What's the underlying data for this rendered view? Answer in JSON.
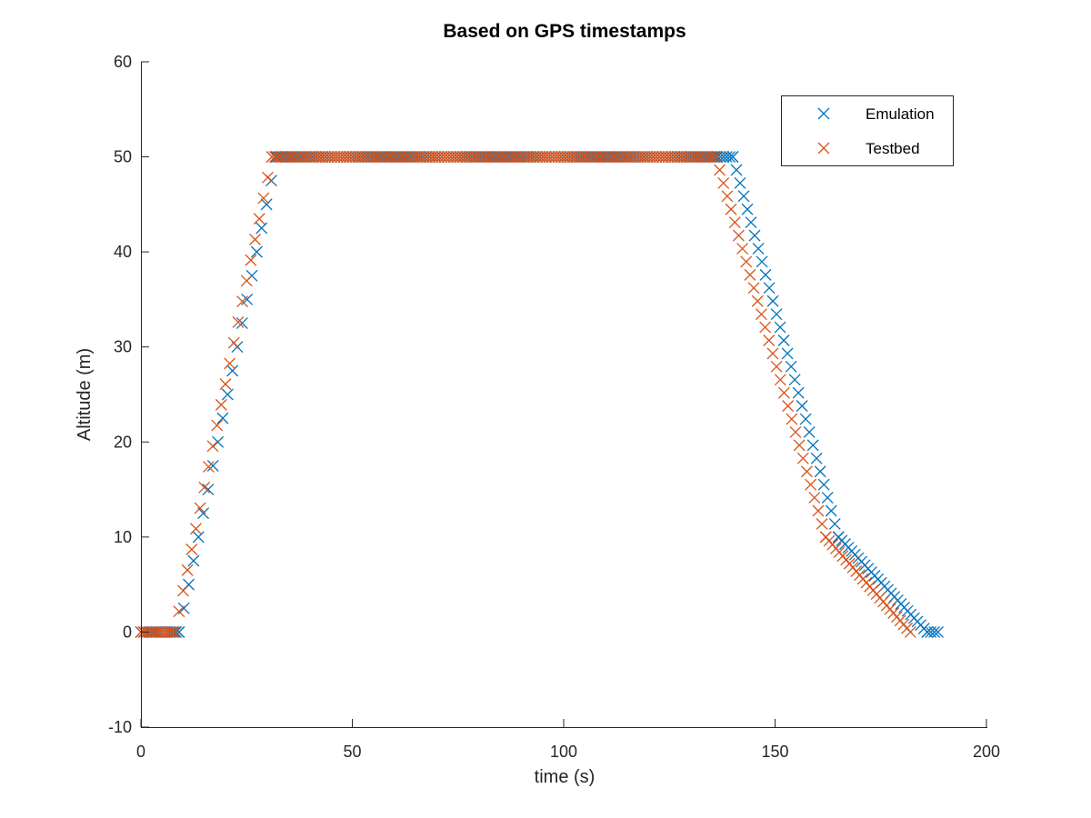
{
  "chart_data": {
    "type": "scatter",
    "title": "Based on GPS timestamps",
    "xlabel": "time (s)",
    "ylabel": "Altitude (m)",
    "xlim": [
      0,
      200
    ],
    "ylim": [
      -10,
      60
    ],
    "xticks": [
      0,
      50,
      100,
      150,
      200
    ],
    "yticks": [
      -10,
      0,
      10,
      20,
      30,
      40,
      50,
      60
    ],
    "xtick_labels": [
      "0",
      "50",
      "100",
      "150",
      "200"
    ],
    "ytick_labels": [
      "-10",
      "0",
      "10",
      "20",
      "30",
      "40",
      "50",
      "60"
    ],
    "grid": false,
    "marker": "x",
    "legend": {
      "placement": "top-right"
    },
    "series": [
      {
        "name": "Emulation",
        "color": "#0072BD",
        "segments": [
          {
            "x_start": 0,
            "x_end": 9,
            "y_start": 0,
            "y_end": 0,
            "n": 14
          },
          {
            "x_start": 9,
            "x_end": 32,
            "y_start": 0,
            "y_end": 50,
            "n": 21
          },
          {
            "x_start": 32,
            "x_end": 140,
            "y_start": 50,
            "y_end": 50,
            "n": 150
          },
          {
            "x_start": 140,
            "x_end": 165,
            "y_start": 50,
            "y_end": 10,
            "n": 30
          },
          {
            "x_start": 165,
            "x_end": 186,
            "y_start": 10,
            "y_end": 0,
            "n": 28
          },
          {
            "x_start": 186,
            "x_end": 188.5,
            "y_start": 0,
            "y_end": 0,
            "n": 4
          }
        ]
      },
      {
        "name": "Testbed",
        "color": "#D95319",
        "segments": [
          {
            "x_start": 0,
            "x_end": 8,
            "y_start": 0,
            "y_end": 0,
            "n": 14
          },
          {
            "x_start": 8,
            "x_end": 31,
            "y_start": 0,
            "y_end": 50,
            "n": 24
          },
          {
            "x_start": 31,
            "x_end": 136,
            "y_start": 50,
            "y_end": 50,
            "n": 150
          },
          {
            "x_start": 136,
            "x_end": 162,
            "y_start": 50,
            "y_end": 10,
            "n": 30
          },
          {
            "x_start": 162,
            "x_end": 182,
            "y_start": 10,
            "y_end": 0,
            "n": 26
          }
        ]
      }
    ]
  }
}
